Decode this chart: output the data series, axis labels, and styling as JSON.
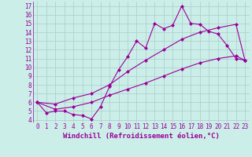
{
  "xlabel": "Windchill (Refroidissement éolien,°C)",
  "bg_color": "#cceee8",
  "grid_color": "#aacccc",
  "line_color": "#990099",
  "x_min": -0.5,
  "x_max": 23.5,
  "y_min": 3.7,
  "y_max": 17.5,
  "line1_x": [
    0,
    1,
    2,
    3,
    4,
    5,
    6,
    7,
    8,
    9,
    10,
    11,
    12,
    13,
    14,
    15,
    16,
    17,
    18,
    19,
    20,
    21,
    22,
    23
  ],
  "line1_y": [
    6.0,
    4.8,
    5.0,
    5.0,
    4.6,
    4.5,
    4.1,
    5.5,
    7.8,
    9.7,
    11.2,
    13.0,
    12.2,
    15.0,
    14.4,
    14.8,
    17.0,
    15.0,
    14.9,
    14.1,
    13.8,
    12.5,
    11.0,
    10.8
  ],
  "line2_x": [
    0,
    2,
    4,
    6,
    8,
    10,
    12,
    14,
    16,
    18,
    20,
    22,
    23
  ],
  "line2_y": [
    6.0,
    5.8,
    6.5,
    7.0,
    8.0,
    9.5,
    10.8,
    12.0,
    13.2,
    14.0,
    14.5,
    14.9,
    10.8
  ],
  "line3_x": [
    0,
    2,
    4,
    6,
    8,
    10,
    12,
    14,
    16,
    18,
    20,
    22,
    23
  ],
  "line3_y": [
    6.0,
    5.2,
    5.5,
    6.0,
    6.8,
    7.5,
    8.2,
    9.0,
    9.8,
    10.5,
    11.0,
    11.3,
    10.8
  ],
  "xtick_labels": [
    "0",
    "1",
    "2",
    "3",
    "4",
    "5",
    "6",
    "7",
    "8",
    "9",
    "10",
    "11",
    "12",
    "13",
    "14",
    "15",
    "16",
    "17",
    "18",
    "19",
    "20",
    "21",
    "22",
    "23"
  ],
  "ytick_values": [
    4,
    5,
    6,
    7,
    8,
    9,
    10,
    11,
    12,
    13,
    14,
    15,
    16,
    17
  ],
  "marker": "D",
  "markersize": 2.0,
  "linewidth": 0.8,
  "xlabel_fontsize": 6.5,
  "tick_fontsize": 5.5
}
